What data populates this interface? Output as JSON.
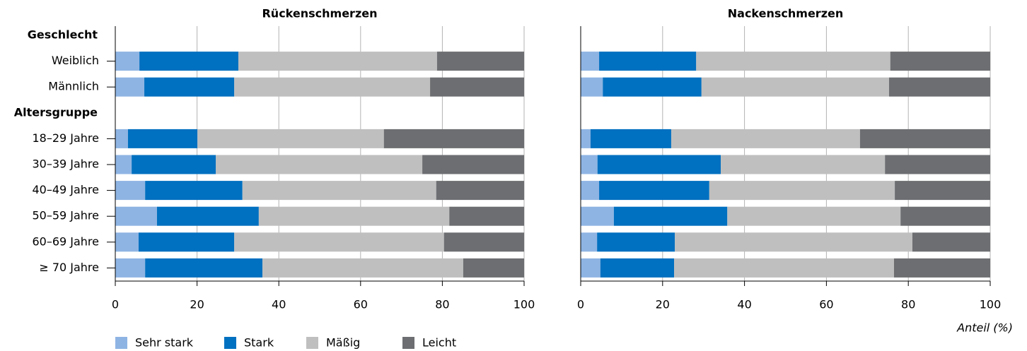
{
  "chart_data": [
    {
      "type": "bar",
      "horizontal": true,
      "title": "Rückenschmerzen",
      "categories": [
        "Geschlecht",
        "Weiblich",
        "Männlich",
        "Altersgruppe",
        "18–29 Jahre",
        "30–39 Jahre",
        "40–49 Jahre",
        "50–59 Jahre",
        "60–69 Jahre",
        "≥ 70 Jahre"
      ],
      "series": [
        {
          "name": "Sehr stark",
          "color": "#8eb4e3",
          "values": [
            null,
            5.9,
            7.1,
            null,
            3.1,
            4.0,
            7.3,
            10.2,
            5.7,
            7.3
          ]
        },
        {
          "name": "Stark",
          "color": "#0070c0",
          "values": [
            null,
            24.2,
            22.0,
            null,
            17.0,
            20.6,
            23.8,
            24.9,
            23.4,
            28.7
          ]
        },
        {
          "name": "Mäßig",
          "color": "#bfbfbf",
          "values": [
            null,
            48.6,
            47.9,
            null,
            45.6,
            50.5,
            47.4,
            46.6,
            51.3,
            49.1
          ]
        },
        {
          "name": "Leicht",
          "color": "#6d6e71",
          "values": [
            null,
            21.3,
            23.0,
            null,
            34.3,
            24.9,
            21.5,
            18.3,
            19.6,
            14.9
          ]
        }
      ],
      "xlim": [
        0,
        100
      ],
      "xticks": [
        0,
        20,
        40,
        60,
        80,
        100
      ],
      "grid": true
    },
    {
      "type": "bar",
      "horizontal": true,
      "title": "Nackenschmerzen",
      "xlabel": "Anteil (%)",
      "series": [
        {
          "values": [
            null,
            4.5,
            5.4,
            null,
            2.4,
            4.1,
            4.5,
            8.1,
            4.0,
            4.8
          ]
        },
        {
          "values": [
            null,
            23.7,
            24.1,
            null,
            19.7,
            30.1,
            26.9,
            27.7,
            19.0,
            18.0
          ]
        },
        {
          "values": [
            null,
            47.4,
            45.8,
            null,
            46.1,
            40.1,
            45.3,
            42.3,
            58.0,
            53.7
          ]
        },
        {
          "values": [
            null,
            24.4,
            24.7,
            null,
            31.8,
            25.7,
            23.3,
            21.9,
            19.0,
            23.5
          ]
        }
      ],
      "xlim": [
        0,
        100
      ],
      "xticks": [
        0,
        20,
        40,
        60,
        80,
        100
      ],
      "grid": true
    }
  ]
}
